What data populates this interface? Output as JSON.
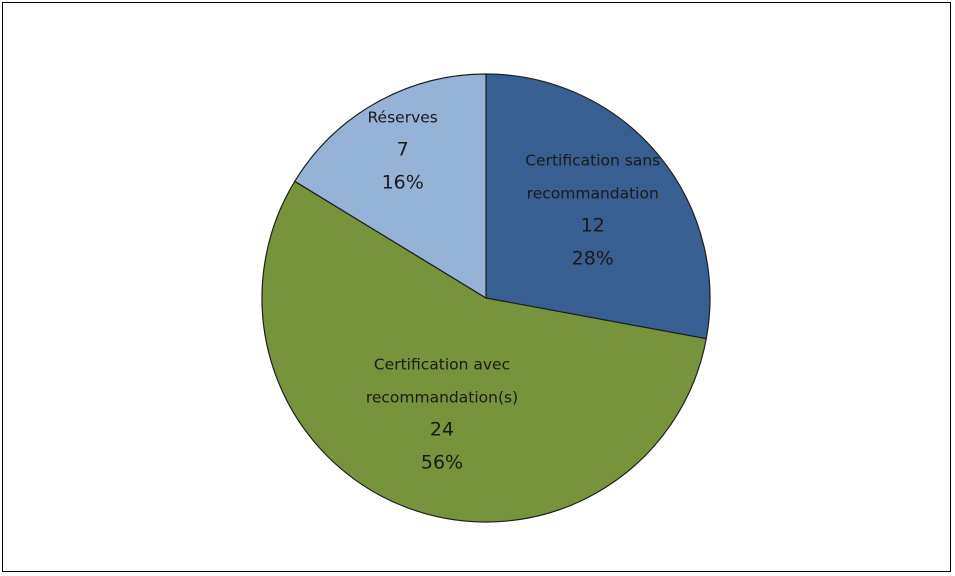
{
  "chart_data": {
    "type": "pie",
    "title": "",
    "slices": [
      {
        "label_lines": [
          "Certification sans",
          "recommandation"
        ],
        "value": 12,
        "percent_label": "28%",
        "color": "#375f91"
      },
      {
        "label_lines": [
          "Certification avec",
          "recommandation(s)"
        ],
        "value": 24,
        "percent_label": "56%",
        "color": "#77933c"
      },
      {
        "label_lines": [
          "Réserves"
        ],
        "value": 7,
        "percent_label": "16%",
        "color": "#95b3d7"
      }
    ],
    "start_direction": "top",
    "order": "clockwise",
    "legend": "none",
    "slice_border_color": "#1f1f1f"
  }
}
